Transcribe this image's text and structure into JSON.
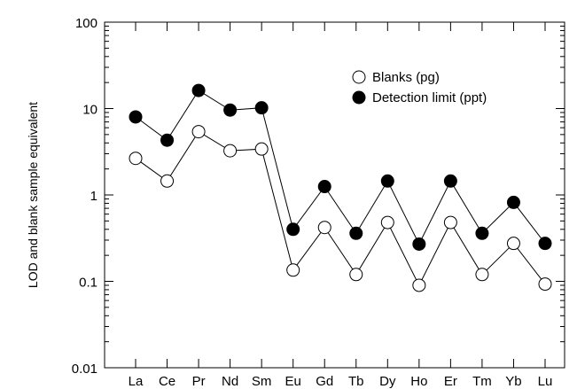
{
  "chart_data": {
    "type": "line",
    "title": "",
    "xlabel": "",
    "ylabel": "LOD and blank sample equivalent",
    "yscale": "log",
    "ylim": [
      0.01,
      100
    ],
    "yticks": [
      "0.01",
      "0.1",
      "1",
      "10",
      "100"
    ],
    "categories": [
      "La",
      "Ce",
      "Pr",
      "Nd",
      "Sm",
      "Eu",
      "Gd",
      "Tb",
      "Dy",
      "Ho",
      "Er",
      "Tm",
      "Yb",
      "Lu"
    ],
    "grid": false,
    "legend_position": "top-right",
    "series": [
      {
        "name": "Blanks (pg)",
        "marker": "open-circle",
        "values": [
          2.65,
          1.45,
          5.4,
          3.25,
          3.4,
          0.135,
          0.42,
          0.12,
          0.48,
          0.09,
          0.48,
          0.12,
          0.275,
          0.093
        ]
      },
      {
        "name": "Detection limit (ppt)",
        "marker": "filled-circle",
        "values": [
          8.0,
          4.3,
          16.2,
          9.6,
          10.2,
          0.4,
          1.25,
          0.36,
          1.45,
          0.27,
          1.45,
          0.36,
          0.82,
          0.275
        ]
      }
    ]
  }
}
